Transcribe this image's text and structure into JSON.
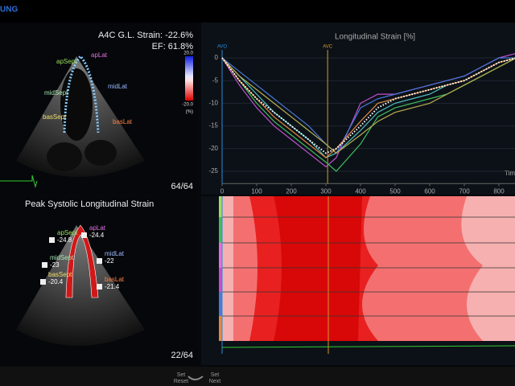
{
  "header": {
    "brand": "UNG"
  },
  "top_view": {
    "strain": "A4C G.L. Strain: -22.6%",
    "ef": "EF: 61.8%",
    "frame": "64/64",
    "scale": {
      "top": "20.0",
      "bottom": "-20.0",
      "unit": "(%)"
    }
  },
  "bottom_view": {
    "title": "Peak Systolic Longitudinal Strain",
    "frame": "22/64"
  },
  "segments": [
    {
      "label": "apSept",
      "color": "#9be060",
      "peak": -24.8
    },
    {
      "label": "apLat",
      "color": "#e070e0",
      "peak": -24.4
    },
    {
      "label": "midSept",
      "color": "#a8e8b0",
      "peak": -23.0
    },
    {
      "label": "midLat",
      "color": "#9ab8ff",
      "peak": -22.0
    },
    {
      "label": "basSept",
      "color": "#f0e070",
      "peak": -20.4
    },
    {
      "label": "basLat",
      "color": "#ff8040",
      "peak": -21.4
    }
  ],
  "controls": {
    "reset": [
      "Set",
      "Reset"
    ],
    "next": [
      "Set",
      "Next"
    ]
  },
  "chart_data": {
    "type": "line",
    "title": "Longitudinal Strain [%]",
    "x_label": "Tim",
    "x": [
      0,
      50,
      100,
      150,
      200,
      250,
      300,
      330,
      400,
      450,
      500,
      550,
      600,
      650,
      700,
      750,
      800,
      850
    ],
    "xlim": [
      0,
      850
    ],
    "xticks": [
      0,
      100,
      200,
      300,
      400,
      500,
      600,
      700,
      800
    ],
    "ylim": [
      -27,
      2
    ],
    "yticks": [
      0,
      -5,
      -10,
      -15,
      -20,
      -25
    ],
    "annotations": [
      {
        "text": "AVO",
        "x": 0,
        "color": "#2a8cd8"
      },
      {
        "text": "AVC",
        "x": 305,
        "color": "#d8962a"
      }
    ],
    "series": [
      {
        "color": "#4fc3c0",
        "values": [
          0,
          -4,
          -8,
          -12,
          -15,
          -18,
          -22,
          -21,
          -16,
          -12,
          -10,
          -9,
          -8,
          -6,
          -5,
          -3,
          -1,
          0
        ]
      },
      {
        "color": "#c050d0",
        "values": [
          0,
          -6,
          -11,
          -15,
          -18,
          -21,
          -24,
          -22,
          -10,
          -8,
          -8,
          -7,
          -6,
          -5,
          -4,
          -2,
          0,
          1
        ]
      },
      {
        "color": "#3fbf5f",
        "values": [
          0,
          -5,
          -10,
          -14,
          -17,
          -20,
          -23,
          -25,
          -19,
          -13,
          -11,
          -10,
          -9,
          -8,
          -6,
          -4,
          -2,
          0
        ]
      },
      {
        "color": "#4a78d8",
        "values": [
          0,
          -3,
          -6,
          -9,
          -12,
          -15,
          -19,
          -21,
          -11,
          -9,
          -8,
          -7,
          -6,
          -5,
          -4,
          -2,
          0,
          0
        ]
      },
      {
        "color": "#b8b050",
        "values": [
          0,
          -4,
          -7,
          -10,
          -13,
          -16,
          -19,
          -21,
          -17,
          -14,
          -12,
          -11,
          -10,
          -8,
          -6,
          -4,
          -2,
          0
        ]
      },
      {
        "color": "#e08a40",
        "values": [
          0,
          -5,
          -9,
          -13,
          -16,
          -19,
          -22,
          -20,
          -14,
          -10,
          -9,
          -8,
          -7,
          -6,
          -5,
          -3,
          -1,
          0
        ]
      },
      {
        "color": "#ffffff",
        "dashed": true,
        "values": [
          0,
          -5,
          -9,
          -12,
          -15,
          -18,
          -21,
          -20,
          -15,
          -11,
          -9,
          -8,
          -7,
          -6,
          -5,
          -3,
          -1,
          0
        ]
      }
    ]
  }
}
